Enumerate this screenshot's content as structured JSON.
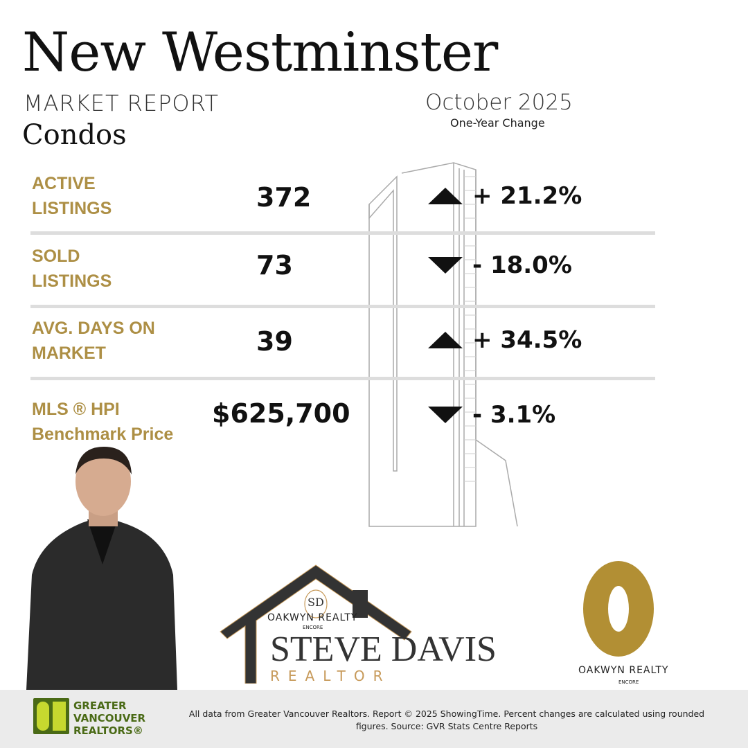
{
  "header": {
    "title": "New Westminster",
    "subtitle": "MARKET REPORT",
    "category": "Condos",
    "period": "October 2025",
    "change_label": "One-Year Change"
  },
  "colors": {
    "gold": "#ad8f45",
    "text": "#111111",
    "divider": "#dddddd",
    "footer_bg": "#ebebeb",
    "gvr_green": "#4a6a16"
  },
  "stats": [
    {
      "label_line1": "ACTIVE",
      "label_line2": "LISTINGS",
      "value": "372",
      "direction": "up",
      "change": "+ 21.2%"
    },
    {
      "label_line1": "SOLD",
      "label_line2": "LISTINGS",
      "value": "73",
      "direction": "down",
      "change": "- 18.0%"
    },
    {
      "label_line1": "AVG. DAYS ON",
      "label_line2": "MARKET",
      "value": "39",
      "direction": "up",
      "change": "+ 34.5%"
    },
    {
      "label_line1": "MLS ®  HPI",
      "label_line2": "Benchmark Price",
      "value": "$625,700",
      "direction": "down",
      "change": "- 3.1%"
    }
  ],
  "branding": {
    "monogram": "SD",
    "brokerage": "OAKWYN REALTY",
    "brokerage_sub": "ENCORE",
    "agent_name": "STEVE DAVIS",
    "agent_title": "REALTOR"
  },
  "footer": {
    "gvr_logo": "GREATER VANCOUVER REALTORS®",
    "disclaimer": "All data from Greater Vancouver Realtors. Report © 2025 ShowingTime. Percent changes are calculated using rounded figures. Source: GVR Stats Centre Reports"
  }
}
